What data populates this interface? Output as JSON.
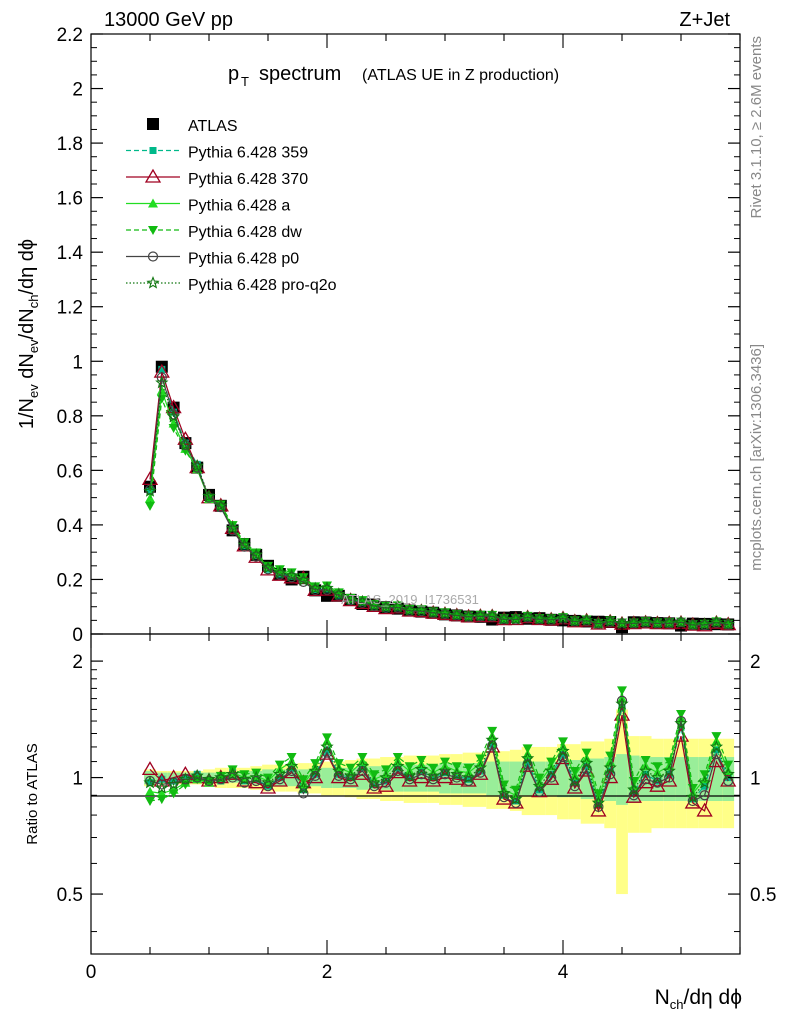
{
  "header": {
    "energy_label": "13000 GeV pp",
    "process_label": "Z+Jet"
  },
  "side_text": {
    "rivet": "Rivet 3.1.10, ≥ 2.6M events",
    "mcplots": "mcplots.cern.ch [arXiv:1306.3436]"
  },
  "chart_data": {
    "type": "scatter",
    "title_main": "p",
    "title_sub": "T",
    "title_rest": "spectrum",
    "title_paren": "(ATLAS UE in Z production)",
    "watermark": "ATLAS_2019_I1736531",
    "xlabel": "N",
    "xlabel_sub": "ch",
    "xlabel_rest": "/dη dϕ",
    "ylabel": "1/N_ev dN_ev/dN_ch/dη dϕ",
    "ratio_ylabel": "Ratio to ATLAS",
    "xlim": [
      0,
      5.5
    ],
    "ylim_main": [
      0,
      2.2
    ],
    "ylim_ratio": [
      0.35,
      2.35
    ],
    "y_ratio_scale": "log",
    "xticks": [
      "0",
      "2",
      "4"
    ],
    "yticks_main": [
      "0",
      "0.2",
      "0.4",
      "0.6",
      "0.8",
      "1",
      "1.2",
      "1.4",
      "1.6",
      "1.8",
      "2",
      "2.2"
    ],
    "yticks_ratio": [
      "0.5",
      "1",
      "2"
    ],
    "legend_position": "top-left",
    "x": [
      0.5,
      0.6,
      0.7,
      0.8,
      0.9,
      1.0,
      1.1,
      1.2,
      1.3,
      1.4,
      1.5,
      1.6,
      1.7,
      1.8,
      1.9,
      2.0,
      2.1,
      2.2,
      2.3,
      2.4,
      2.5,
      2.6,
      2.7,
      2.8,
      2.9,
      3.0,
      3.1,
      3.2,
      3.3,
      3.4,
      3.5,
      3.6,
      3.7,
      3.8,
      3.9,
      4.0,
      4.1,
      4.2,
      4.3,
      4.4,
      4.5,
      4.6,
      4.7,
      4.8,
      4.9,
      5.0,
      5.1,
      5.2,
      5.3,
      5.4
    ],
    "data": [
      0.54,
      0.98,
      0.83,
      0.7,
      0.61,
      0.51,
      0.47,
      0.38,
      0.33,
      0.29,
      0.25,
      0.22,
      0.2,
      0.21,
      0.16,
      0.14,
      0.14,
      0.125,
      0.11,
      0.108,
      0.098,
      0.093,
      0.086,
      0.082,
      0.078,
      0.072,
      0.068,
      0.064,
      0.063,
      0.053,
      0.06,
      0.062,
      0.056,
      0.058,
      0.052,
      0.05,
      0.048,
      0.046,
      0.045,
      0.044,
      0.025,
      0.043,
      0.042,
      0.04,
      0.039,
      0.031,
      0.038,
      0.037,
      0.036,
      0.035
    ],
    "band_inner": [
      0.04,
      0.03,
      0.03,
      0.03,
      0.03,
      0.03,
      0.03,
      0.03,
      0.04,
      0.04,
      0.05,
      0.05,
      0.05,
      0.05,
      0.05,
      0.06,
      0.06,
      0.06,
      0.07,
      0.07,
      0.07,
      0.08,
      0.08,
      0.08,
      0.08,
      0.09,
      0.09,
      0.09,
      0.09,
      0.1,
      0.1,
      0.1,
      0.1,
      0.1,
      0.1,
      0.11,
      0.11,
      0.12,
      0.12,
      0.13,
      0.15,
      0.14,
      0.13,
      0.13,
      0.13,
      0.13,
      0.13,
      0.13,
      0.13,
      0.13
    ],
    "band_outer": [
      0.05,
      0.04,
      0.04,
      0.04,
      0.04,
      0.05,
      0.06,
      0.06,
      0.06,
      0.07,
      0.08,
      0.08,
      0.08,
      0.09,
      0.09,
      0.1,
      0.1,
      0.11,
      0.12,
      0.12,
      0.13,
      0.13,
      0.14,
      0.14,
      0.14,
      0.15,
      0.15,
      0.16,
      0.16,
      0.17,
      0.17,
      0.18,
      0.2,
      0.2,
      0.2,
      0.22,
      0.22,
      0.24,
      0.24,
      0.26,
      0.5,
      0.28,
      0.28,
      0.26,
      0.26,
      0.26,
      0.26,
      0.26,
      0.26,
      0.26
    ],
    "series": [
      {
        "name": "ATLAS",
        "color": "#000000",
        "marker": "square",
        "line": "none",
        "ratio": [
          1,
          1,
          1,
          1,
          1,
          1,
          1,
          1,
          1,
          1,
          1,
          1,
          1,
          1,
          1,
          1,
          1,
          1,
          1,
          1,
          1,
          1,
          1,
          1,
          1,
          1,
          1,
          1,
          1,
          1,
          1,
          1,
          1,
          1,
          1,
          1,
          1,
          1,
          1,
          1,
          1,
          1,
          1,
          1,
          1,
          1,
          1,
          1,
          1,
          1
        ]
      },
      {
        "name": "Pythia 6.428 359",
        "color": "#00b98a",
        "marker": "smallsquare",
        "line": "dash",
        "ratio": [
          0.97,
          0.99,
          0.98,
          1.0,
          1.02,
          0.97,
          0.98,
          1.03,
          0.98,
          0.99,
          0.95,
          1.0,
          1.06,
          0.93,
          1.02,
          1.18,
          1.02,
          1.0,
          1.06,
          0.96,
          0.98,
          1.06,
          1.0,
          1.04,
          1.0,
          1.03,
          1.01,
          0.99,
          1.04,
          1.22,
          0.9,
          0.87,
          1.1,
          0.93,
          1.02,
          1.15,
          0.97,
          1.07,
          0.85,
          1.04,
          1.52,
          0.92,
          1.02,
          0.98,
          1.02,
          1.35,
          0.88,
          0.95,
          1.18,
          1.0
        ]
      },
      {
        "name": "Pythia 6.428 370",
        "color": "#a00020",
        "marker": "triangle-open",
        "line": "solid",
        "ratio": [
          1.05,
          0.98,
          1.0,
          1.02,
          1.0,
          0.98,
          1.0,
          1.02,
          0.98,
          0.97,
          0.94,
          0.98,
          1.03,
          0.97,
          1.0,
          1.15,
          1.0,
          0.98,
          1.02,
          0.94,
          0.95,
          1.03,
          0.98,
          1.0,
          0.98,
          1.0,
          0.99,
          0.98,
          1.02,
          1.2,
          0.88,
          0.86,
          1.07,
          0.92,
          0.99,
          1.12,
          0.94,
          1.04,
          0.82,
          1.0,
          1.45,
          0.89,
          0.97,
          0.95,
          0.98,
          1.28,
          0.86,
          0.82,
          1.1,
          0.98
        ]
      },
      {
        "name": "Pythia 6.428 a",
        "color": "#22dd22",
        "marker": "triangle-up",
        "line": "solid",
        "ratio": [
          0.92,
          0.91,
          0.93,
          0.97,
          0.99,
          0.97,
          1.0,
          1.03,
          1.0,
          1.01,
          0.98,
          1.05,
          1.1,
          0.96,
          1.06,
          1.24,
          1.06,
          1.03,
          1.1,
          0.99,
          1.02,
          1.1,
          1.04,
          1.08,
          1.03,
          1.07,
          1.04,
          1.03,
          1.09,
          1.28,
          0.93,
          0.9,
          1.15,
          0.97,
          1.07,
          1.2,
          1.01,
          1.12,
          0.88,
          1.1,
          1.6,
          0.95,
          1.07,
          1.03,
          1.07,
          1.42,
          0.91,
          0.99,
          1.24,
          1.04
        ]
      },
      {
        "name": "Pythia 6.428 dw",
        "color": "#11bb11",
        "marker": "triangle-down",
        "line": "dash",
        "ratio": [
          0.87,
          0.88,
          0.91,
          0.96,
          0.99,
          0.98,
          1.01,
          1.05,
          1.02,
          1.03,
          1.0,
          1.08,
          1.13,
          0.99,
          1.09,
          1.27,
          1.09,
          1.06,
          1.13,
          1.02,
          1.05,
          1.13,
          1.07,
          1.11,
          1.06,
          1.1,
          1.07,
          1.06,
          1.12,
          1.32,
          0.96,
          0.93,
          1.19,
          1.0,
          1.1,
          1.24,
          1.04,
          1.16,
          0.91,
          1.14,
          1.68,
          0.98,
          1.11,
          1.07,
          1.1,
          1.46,
          0.94,
          1.02,
          1.28,
          1.08
        ]
      },
      {
        "name": "Pythia 6.428 p0",
        "color": "#444444",
        "marker": "circle-open",
        "line": "solid",
        "ratio": [
          0.98,
          0.96,
          0.97,
          0.99,
          1.0,
          0.98,
          0.99,
          1.0,
          0.97,
          0.98,
          0.95,
          0.99,
          1.04,
          0.91,
          1.01,
          1.16,
          1.01,
          0.99,
          1.04,
          0.95,
          0.97,
          1.04,
          0.99,
          1.02,
          0.99,
          1.02,
          1.0,
          0.98,
          1.03,
          1.21,
          0.89,
          0.86,
          1.08,
          0.92,
          1.0,
          1.13,
          0.95,
          1.05,
          0.84,
          1.02,
          1.58,
          0.9,
          0.99,
          0.97,
          1.0,
          1.4,
          0.87,
          0.9,
          1.15,
          0.98
        ]
      },
      {
        "name": "Pythia 6.428 pro-q2o",
        "color": "#117711",
        "marker": "star",
        "line": "dot",
        "ratio": [
          0.97,
          0.94,
          0.96,
          0.99,
          1.01,
          0.99,
          1.0,
          1.02,
          0.99,
          1.0,
          0.97,
          1.02,
          1.07,
          0.94,
          1.04,
          1.2,
          1.04,
          1.01,
          1.07,
          0.97,
          1.0,
          1.07,
          1.01,
          1.05,
          1.01,
          1.04,
          1.02,
          1.0,
          1.06,
          1.25,
          0.91,
          0.88,
          1.12,
          0.95,
          1.04,
          1.17,
          0.98,
          1.09,
          0.86,
          1.06,
          1.55,
          0.93,
          1.04,
          1.0,
          1.04,
          1.38,
          0.89,
          0.97,
          1.2,
          1.02
        ]
      }
    ]
  }
}
